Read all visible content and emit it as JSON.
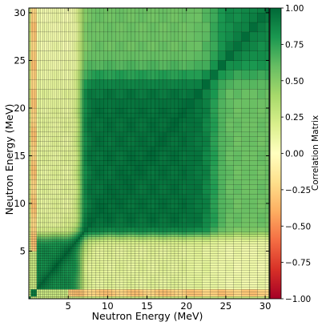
{
  "chart_data": {
    "type": "heatmap",
    "xlabel": "Neutron Energy (MeV)",
    "ylabel": "Neutron Energy (MeV)",
    "colorbar_label": "Correlation Matrix",
    "xlim": [
      0,
      30.5
    ],
    "ylim": [
      0,
      30.5
    ],
    "x_ticks": [
      5,
      10,
      15,
      20,
      25,
      30
    ],
    "y_ticks": [
      5,
      10,
      15,
      20,
      25,
      30
    ],
    "colorbar_range": [
      -1.0,
      1.0
    ],
    "colorbar_ticks": [
      "1.00",
      "0.75",
      "0.50",
      "0.25",
      "0.00",
      "−0.25",
      "−0.50",
      "−0.75",
      "−1.00"
    ],
    "colormap": [
      "#a50026",
      "#d73027",
      "#f46d43",
      "#fdae61",
      "#fee08b",
      "#ffffbf",
      "#d9ef8b",
      "#a6d96a",
      "#66bd63",
      "#1a9850",
      "#006837"
    ],
    "bin_edges_mev": [
      0,
      0.25,
      0.5,
      0.75,
      1,
      1.25,
      1.5,
      1.75,
      2,
      2.25,
      2.5,
      2.75,
      3,
      3.25,
      3.5,
      3.75,
      4,
      4.25,
      4.5,
      4.75,
      5,
      5.25,
      5.5,
      5.75,
      6,
      6.25,
      6.5,
      6.75,
      7,
      7.5,
      8,
      8.5,
      9,
      9.5,
      10,
      10.5,
      11,
      11.5,
      12,
      12.5,
      13,
      13.5,
      14,
      14.5,
      15,
      15.5,
      16,
      16.5,
      17,
      17.5,
      18,
      18.5,
      19,
      19.5,
      20,
      21,
      22,
      23,
      24,
      25,
      26,
      27,
      28,
      29,
      30,
      30.5
    ],
    "approximate_structure": [
      {
        "region": "diagonal block 7-23 MeV",
        "correlation": 0.95
      },
      {
        "region": "diagonal block 1-6 MeV",
        "correlation": 0.85
      },
      {
        "region": "off-diagonal 1-6 x 7-23 MeV",
        "correlation": 0.15
      },
      {
        "region": "diagonal block 24-30.5 MeV",
        "correlation": 0.85
      },
      {
        "region": "off-diagonal 7-23 x 24-30.5 MeV",
        "correlation": 0.6
      },
      {
        "region": "lowest bins 0.25-1 MeV x above 6 MeV",
        "correlation": -0.3
      },
      {
        "region": "lowest bin 0-0.25 MeV",
        "correlation": 0.3
      }
    ]
  }
}
